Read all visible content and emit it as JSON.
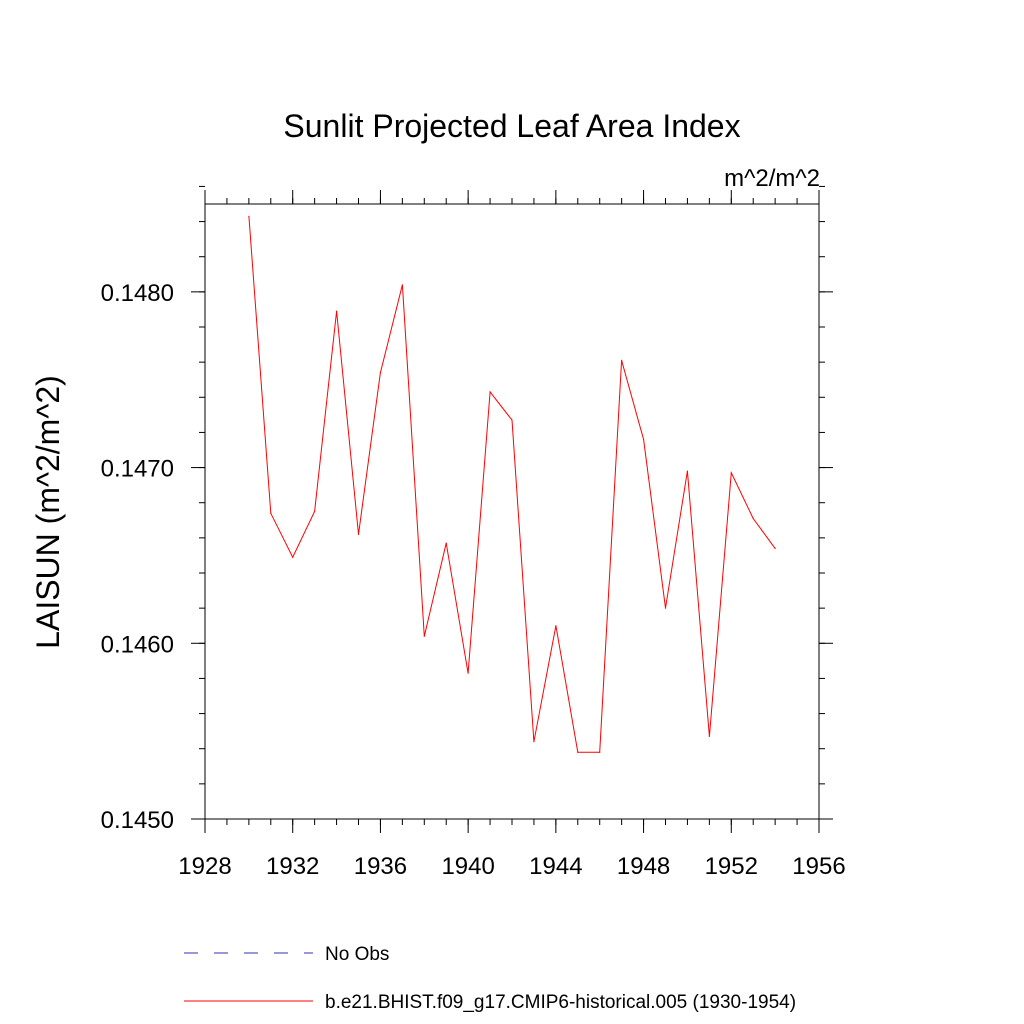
{
  "chart_data": {
    "type": "line",
    "title": "Sunlit Projected Leaf Area Index",
    "units_label": "m^2/m^2",
    "xlabel": "",
    "ylabel": "LAISUN  (m^2/m^2)",
    "xlim": [
      1928,
      1956
    ],
    "ylim": [
      0.145,
      0.1485
    ],
    "x_ticks": [
      1928,
      1932,
      1936,
      1940,
      1944,
      1948,
      1952,
      1956
    ],
    "x_tick_labels": [
      "1928",
      "1932",
      "1936",
      "1940",
      "1944",
      "1948",
      "1952",
      "1956"
    ],
    "x_minor_step": 1,
    "y_ticks": [
      0.145,
      0.146,
      0.147,
      0.148
    ],
    "y_tick_labels": [
      "0.1450",
      "0.1460",
      "0.1470",
      "0.1480"
    ],
    "y_minor_step": 0.0002,
    "grid": false,
    "legend_position": "bottom",
    "series": [
      {
        "name": "b.e21.BHIST.f09_g17.CMIP6-historical.005 (1930-1954)",
        "color": "#ff0000",
        "style": "solid",
        "x": [
          1930,
          1931,
          1932,
          1933,
          1934,
          1935,
          1936,
          1937,
          1938,
          1939,
          1940,
          1941,
          1942,
          1943,
          1944,
          1945,
          1946,
          1947,
          1948,
          1949,
          1950,
          1951,
          1952,
          1953,
          1954
        ],
        "values": [
          0.14843,
          0.14674,
          0.14649,
          0.14675,
          0.14789,
          0.14662,
          0.14754,
          0.14804,
          0.14604,
          0.14657,
          0.14583,
          0.14743,
          0.14727,
          0.14544,
          0.1461,
          0.14538,
          0.14538,
          0.14761,
          0.14716,
          0.1462,
          0.14698,
          0.14547,
          0.14697,
          0.14671,
          0.14654
        ]
      }
    ],
    "legend": [
      {
        "label": "No Obs",
        "color": "#3030b0",
        "style": "dashed"
      },
      {
        "label": "b.e21.BHIST.f09_g17.CMIP6-historical.005 (1930-1954)",
        "color": "#ff0000",
        "style": "solid"
      }
    ]
  }
}
